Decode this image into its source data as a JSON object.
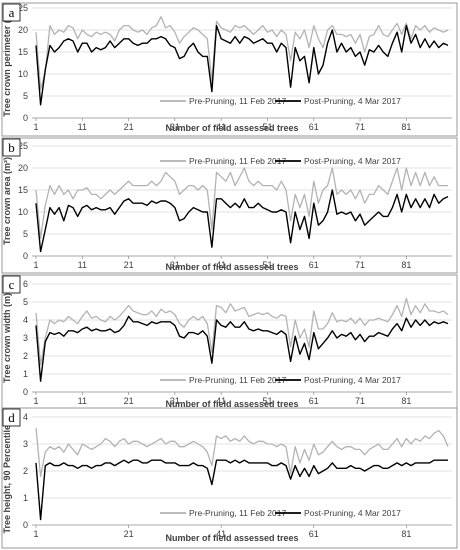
{
  "chart_data": [
    {
      "type": "line",
      "panel_label": "a",
      "ylabel": "Tree crown perimeter (m)",
      "xlabel": "Number of field assessed trees",
      "ylim": [
        0,
        25
      ],
      "yticks": [
        "0",
        "5",
        "10",
        "15",
        "20",
        "25"
      ],
      "xticks": [
        "1",
        "11",
        "21",
        "31",
        "41",
        "51",
        "61",
        "71",
        "81"
      ],
      "grid": true,
      "legend_position": "bottom-center",
      "series": [
        {
          "name": "Pre-Pruning, 11 Feb 2017",
          "color": "#b3b3b3",
          "values": [
            19.5,
            6.5,
            10.5,
            21,
            19,
            20,
            19.5,
            21,
            20.5,
            18,
            20,
            19,
            18.5,
            19.5,
            19,
            19.5,
            19,
            17.5,
            20,
            21,
            21,
            20,
            19.5,
            20,
            19,
            20.5,
            21,
            23,
            20.5,
            21,
            19.5,
            17,
            18.5,
            19.5,
            20.5,
            20,
            19,
            18,
            8.5,
            22,
            20.5,
            20,
            19.5,
            21,
            20.5,
            21,
            20,
            19,
            20,
            21,
            19.5,
            20,
            18.5,
            20,
            19,
            13,
            19.5,
            18,
            20,
            16,
            21,
            18,
            16,
            20,
            21,
            19,
            19,
            18.5,
            19,
            17,
            19,
            15,
            18.5,
            19,
            21,
            19,
            18.5,
            20,
            21.5,
            19,
            21.5,
            18,
            21,
            20,
            21,
            19.5,
            20.5,
            20,
            19.5,
            20
          ]
        },
        {
          "name": "Post-Pruning, 4 Mar 2017",
          "color": "#000000",
          "values": [
            16.5,
            3,
            11,
            16.5,
            15,
            16,
            17.5,
            18,
            17.5,
            15,
            17,
            17,
            15,
            16,
            15.5,
            16,
            17.5,
            16,
            17,
            18,
            18,
            17,
            16.5,
            17,
            17,
            18,
            18,
            18.5,
            18,
            16.5,
            16,
            13.5,
            14,
            16,
            17,
            15,
            14,
            14,
            6,
            21,
            18,
            17.5,
            17,
            18.5,
            17,
            18.5,
            18,
            17,
            17.5,
            18,
            17,
            17,
            15,
            17,
            16,
            7,
            16,
            13,
            14,
            8,
            16,
            10,
            12,
            17,
            20,
            15,
            17,
            15,
            16,
            14,
            15,
            12,
            15.5,
            15,
            16.5,
            15,
            14,
            17,
            19.5,
            15,
            21,
            17,
            19,
            16,
            18,
            16,
            17.5,
            16,
            17,
            16.5
          ]
        }
      ]
    },
    {
      "type": "line",
      "panel_label": "b",
      "ylabel": "Tree crown area (m²)",
      "xlabel": "Number of field assessed trees",
      "ylim": [
        0,
        25
      ],
      "yticks": [
        "0",
        "5",
        "10",
        "15",
        "20",
        "25"
      ],
      "xticks": [
        "1",
        "11",
        "21",
        "31",
        "41",
        "51",
        "61",
        "71",
        "81"
      ],
      "grid": true,
      "legend_position": "top-center",
      "series": [
        {
          "name": "Pre-Pruning, 11 Feb 2017",
          "color": "#b3b3b3",
          "values": [
            15,
            4,
            11.5,
            16,
            14,
            16,
            14,
            15,
            13,
            15,
            15,
            15.5,
            14,
            14,
            13,
            14,
            15,
            14,
            15,
            16,
            17,
            16,
            16,
            16,
            16,
            17,
            16,
            17,
            19,
            18,
            17,
            14,
            15,
            16,
            16,
            15,
            16,
            15,
            6,
            19,
            18,
            17,
            19,
            16,
            18,
            20,
            17,
            16,
            17,
            16,
            16,
            16,
            15,
            17,
            15,
            8,
            14,
            11,
            14,
            9,
            17,
            12,
            15,
            16,
            20,
            14,
            15,
            14,
            15,
            13,
            15,
            12,
            14,
            14,
            16,
            15,
            14,
            17,
            20,
            15,
            20,
            16,
            19,
            16,
            19,
            16,
            18,
            16,
            16,
            16
          ]
        },
        {
          "name": "Post-Pruning, 4 Mar 2017",
          "color": "#000000",
          "values": [
            12,
            1,
            6,
            11,
            9.5,
            11,
            8,
            11.5,
            11,
            9,
            11,
            11.5,
            10.5,
            11,
            10.5,
            10.5,
            11,
            9.5,
            11,
            12.5,
            13,
            12,
            12,
            12,
            11.5,
            12.5,
            12,
            12.5,
            12.5,
            12,
            11,
            8,
            8.5,
            10,
            11,
            10.5,
            10,
            10,
            2,
            13,
            13,
            12,
            11,
            12,
            11,
            13,
            11,
            11,
            12,
            11,
            10.5,
            10,
            10,
            10.5,
            10,
            3,
            10,
            6,
            9,
            4,
            12,
            7,
            8,
            10,
            15,
            9.5,
            10,
            9.5,
            10,
            8,
            9.5,
            7,
            8,
            9,
            10,
            9,
            9,
            11,
            14,
            10,
            14,
            11,
            13,
            11,
            13,
            11,
            14,
            12,
            13,
            13.5
          ]
        }
      ]
    },
    {
      "type": "line",
      "panel_label": "c",
      "ylabel": "Tree crown width (m)",
      "xlabel": "Number of field assessed trees",
      "ylim": [
        0,
        6
      ],
      "yticks": [
        "0",
        "1",
        "2",
        "3",
        "4",
        "5",
        "6"
      ],
      "xticks": [
        "1",
        "11",
        "21",
        "31",
        "41",
        "51",
        "61",
        "71",
        "81"
      ],
      "grid": true,
      "legend_position": "bottom-center",
      "series": [
        {
          "name": "Pre-Pruning, 11 Feb 2017",
          "color": "#b3b3b3",
          "values": [
            4.4,
            1.5,
            3,
            4,
            3.8,
            4,
            3.9,
            4.2,
            4,
            3.8,
            4.2,
            4.5,
            4.1,
            4.2,
            4,
            3.9,
            4.2,
            4,
            4.2,
            4.5,
            4.8,
            4.5,
            4.4,
            4.3,
            4.3,
            4.5,
            4.2,
            4.6,
            4.4,
            4.5,
            4.3,
            3.8,
            3.6,
            4,
            4.2,
            4,
            4.2,
            3.8,
            2.2,
            4.8,
            4.7,
            4.4,
            4.9,
            4.5,
            4.6,
            4.7,
            4.2,
            4.3,
            4.4,
            4.3,
            4.4,
            4.2,
            4.1,
            4.3,
            4.2,
            2.5,
            4,
            3,
            3.5,
            2.5,
            4.5,
            3.5,
            3.5,
            3.8,
            4.4,
            3.9,
            4,
            3.9,
            4.1,
            3.8,
            4.1,
            3.7,
            4,
            4,
            4.1,
            4,
            3.9,
            4.3,
            4.8,
            4.2,
            5.2,
            4.3,
            4.8,
            4.4,
            4.9,
            4.5,
            4.5,
            4.4,
            4.5,
            4.3
          ]
        },
        {
          "name": "Post-Pruning, 4 Mar 2017",
          "color": "#000000",
          "values": [
            3.7,
            0.6,
            2.8,
            3.3,
            3.2,
            3.3,
            3.1,
            3.4,
            3.4,
            3.3,
            3.5,
            3.6,
            3.4,
            3.5,
            3.4,
            3.4,
            3.5,
            3.3,
            3.4,
            3.7,
            4.2,
            3.9,
            3.9,
            3.8,
            3.7,
            3.9,
            3.8,
            3.9,
            3.9,
            3.9,
            3.7,
            3.1,
            3,
            3.3,
            3.3,
            3.2,
            3.4,
            3.1,
            1.6,
            4,
            3.7,
            3.6,
            3.9,
            3.6,
            3.6,
            3.9,
            3.5,
            3.4,
            3.5,
            3.4,
            3.4,
            3.3,
            3.2,
            3.4,
            3.2,
            1.7,
            3.1,
            2.1,
            2.7,
            1.8,
            3.3,
            2.4,
            2.7,
            3,
            3.4,
            3,
            3.2,
            3.1,
            3.3,
            2.9,
            3.2,
            2.8,
            3.1,
            3.1,
            3.3,
            3.2,
            3.1,
            3.5,
            3.8,
            3.4,
            4.1,
            3.6,
            4,
            3.7,
            4,
            3.7,
            3.9,
            3.8,
            3.9,
            3.8
          ]
        }
      ]
    },
    {
      "type": "line",
      "panel_label": "d",
      "ylabel": "Tree height, 90 Percentile (m)",
      "xlabel": "Number of field assessed trees",
      "ylim": [
        0,
        4
      ],
      "yticks": [
        "0",
        "1",
        "2",
        "3",
        "4"
      ],
      "xticks": [
        "1",
        "21",
        "41",
        "61",
        "81"
      ],
      "grid": true,
      "legend_position": "bottom-center",
      "series": [
        {
          "name": "Pre-Pruning, 11 Feb 2017",
          "color": "#b3b3b3",
          "values": [
            3.6,
            1.8,
            2.7,
            2.9,
            2.8,
            2.9,
            2.7,
            3,
            2.8,
            2.6,
            3,
            2.9,
            2.8,
            2.9,
            3,
            3.2,
            3.1,
            2.9,
            3.1,
            3.2,
            3,
            3.1,
            3.1,
            3,
            2.9,
            3,
            3.1,
            3.2,
            3,
            3.1,
            3.1,
            2.9,
            2.9,
            3,
            3.1,
            3,
            2.9,
            2.7,
            2.2,
            3.3,
            3.2,
            3.3,
            3.1,
            3.2,
            3.1,
            3.3,
            3.1,
            3,
            3.1,
            3.1,
            3,
            3,
            2.9,
            3,
            2.9,
            1.9,
            2.9,
            2.3,
            2.8,
            2.4,
            3,
            2.6,
            2.7,
            2.9,
            3.1,
            2.9,
            2.8,
            2.9,
            2.9,
            2.8,
            2.8,
            2.6,
            2.8,
            2.9,
            3,
            2.8,
            2.8,
            3,
            3.2,
            2.9,
            3.2,
            3,
            3.2,
            3.1,
            3.3,
            3.2,
            3.4,
            3.5,
            3.3,
            2.9
          ]
        },
        {
          "name": "Post-Pruning, 4 Mar 2017",
          "color": "#000000",
          "values": [
            2.3,
            0.2,
            2.2,
            2.3,
            2.2,
            2.2,
            2.3,
            2.2,
            2.2,
            2.1,
            2.2,
            2.2,
            2.1,
            2.2,
            2.2,
            2.3,
            2.3,
            2.2,
            2.3,
            2.4,
            2.3,
            2.4,
            2.4,
            2.3,
            2.3,
            2.4,
            2.4,
            2.4,
            2.3,
            2.3,
            2.3,
            2.2,
            2.2,
            2.2,
            2.3,
            2.2,
            2.2,
            2.1,
            1.5,
            2.4,
            2.4,
            2.4,
            2.3,
            2.4,
            2.3,
            2.4,
            2.3,
            2.3,
            2.3,
            2.3,
            2.3,
            2.2,
            2.2,
            2.3,
            2.2,
            1.7,
            2.2,
            1.8,
            2.1,
            1.8,
            2.2,
            1.9,
            2,
            2.1,
            2.3,
            2.1,
            2.1,
            2.1,
            2.2,
            2.1,
            2.1,
            2,
            2.1,
            2.2,
            2.2,
            2.1,
            2.1,
            2.2,
            2.3,
            2.2,
            2.3,
            2.2,
            2.3,
            2.3,
            2.3,
            2.3,
            2.4,
            2.4,
            2.4,
            2.4
          ]
        }
      ]
    }
  ]
}
